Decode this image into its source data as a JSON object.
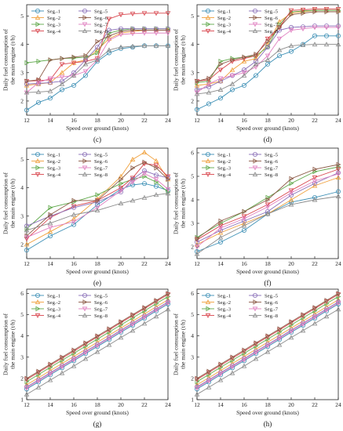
{
  "figure": {
    "colors": {
      "Seg.-1": "#3c8fb5",
      "Seg.-2": "#f0a03c",
      "Seg.-3": "#5fa84a",
      "Seg.-4": "#d8434b",
      "Seg.-5": "#8a6fb8",
      "Seg.-6": "#8c5a46",
      "Seg.-7": "#e07fc0",
      "Seg.-8": "#8a8a8a"
    },
    "markers": {
      "Seg.-1": "circle",
      "Seg.-2": "triangle-up",
      "Seg.-3": "triangle-right",
      "Seg.-4": "triangle-down",
      "Seg.-5": "circle",
      "Seg.-6": "triangle-right",
      "Seg.-7": "triangle-down",
      "Seg.-8": "triangle-up"
    }
  },
  "chart_data": [
    {
      "panel": "(c)",
      "type": "line",
      "xlabel": "Speed over ground (knots)",
      "ylabel": "Daily fuel consumption of the main engine (t/h)",
      "xlim": [
        12,
        24
      ],
      "ylim": [
        1.5,
        5.4
      ],
      "xticks": [
        12,
        14,
        16,
        18,
        20,
        22,
        24
      ],
      "yticks": [
        2,
        3,
        4,
        5
      ],
      "legend_cols": [
        [
          "Seg.-1",
          "Seg.-2",
          "Seg.-3",
          "Seg.-4"
        ],
        [
          "Seg.-5",
          "Seg.-6",
          "Seg.-7",
          "Seg.-8"
        ]
      ],
      "legend": "top-left",
      "grid": false,
      "x": [
        12,
        13,
        14,
        15,
        16,
        17,
        18,
        19,
        20,
        21,
        22,
        23,
        24
      ],
      "series": [
        {
          "name": "Seg.-1",
          "values": [
            1.68,
            1.95,
            2.1,
            2.4,
            2.55,
            2.9,
            3.4,
            3.7,
            3.85,
            3.9,
            3.95,
            3.95,
            3.95
          ]
        },
        {
          "name": "Seg.-2",
          "values": [
            2.55,
            2.6,
            2.65,
            3.0,
            3.35,
            3.45,
            3.8,
            4.2,
            4.4,
            4.45,
            4.5,
            4.5,
            4.5
          ]
        },
        {
          "name": "Seg.-3",
          "values": [
            3.35,
            3.4,
            3.45,
            3.5,
            3.52,
            3.55,
            3.7,
            4.4,
            4.5,
            4.55,
            4.55,
            4.55,
            4.55
          ]
        },
        {
          "name": "Seg.-4",
          "values": [
            2.7,
            2.72,
            2.75,
            3.3,
            3.35,
            3.4,
            3.5,
            4.9,
            5.05,
            5.08,
            5.1,
            5.1,
            5.1
          ]
        },
        {
          "name": "Seg.-5",
          "values": [
            2.6,
            2.62,
            2.65,
            2.7,
            3.0,
            3.45,
            3.9,
            4.5,
            4.55,
            4.55,
            4.55,
            4.55,
            4.55
          ]
        },
        {
          "name": "Seg.-6",
          "values": [
            2.7,
            2.75,
            3.45,
            3.5,
            3.55,
            3.6,
            4.1,
            4.3,
            4.45,
            4.5,
            4.5,
            4.5,
            4.5
          ]
        },
        {
          "name": "Seg.-7",
          "values": [
            2.3,
            2.65,
            2.8,
            2.85,
            2.9,
            3.05,
            3.45,
            4.15,
            4.35,
            4.38,
            4.4,
            4.4,
            4.4
          ]
        },
        {
          "name": "Seg.-8",
          "values": [
            2.3,
            2.32,
            2.35,
            2.6,
            2.9,
            3.3,
            3.45,
            3.8,
            3.9,
            3.93,
            3.95,
            3.95,
            3.95
          ]
        }
      ]
    },
    {
      "panel": "(d)",
      "type": "line",
      "xlabel": "Speed over ground (knots)",
      "ylabel": "Daily fuel consumption of the main engine (t/h)",
      "xlim": [
        12,
        24
      ],
      "ylim": [
        1.5,
        5.4
      ],
      "xticks": [
        12,
        14,
        16,
        18,
        20,
        22,
        24
      ],
      "yticks": [
        2,
        3,
        4,
        5
      ],
      "legend_cols": [
        [
          "Seg.-1",
          "Seg.-2",
          "Seg.-3",
          "Seg.-4"
        ],
        [
          "Seg.-5",
          "Seg.-6",
          "Seg.-7",
          "Seg.-8"
        ]
      ],
      "legend": "top-left",
      "grid": false,
      "x": [
        12,
        13,
        14,
        15,
        16,
        17,
        18,
        19,
        20,
        21,
        22,
        23,
        24
      ],
      "series": [
        {
          "name": "Seg.-1",
          "values": [
            1.7,
            1.9,
            2.1,
            2.4,
            2.55,
            2.9,
            3.3,
            3.6,
            3.75,
            4.0,
            4.3,
            4.3,
            4.3
          ]
        },
        {
          "name": "Seg.-2",
          "values": [
            2.55,
            2.6,
            2.7,
            3.1,
            3.4,
            3.5,
            4.0,
            4.8,
            5.1,
            5.15,
            5.2,
            5.2,
            5.2
          ]
        },
        {
          "name": "Seg.-3",
          "values": [
            2.65,
            2.7,
            3.4,
            3.5,
            3.55,
            3.6,
            3.9,
            4.7,
            5.15,
            5.18,
            5.2,
            5.2,
            5.2
          ]
        },
        {
          "name": "Seg.-4",
          "values": [
            2.7,
            2.75,
            3.1,
            3.4,
            3.5,
            3.6,
            4.2,
            4.6,
            5.2,
            5.22,
            5.25,
            5.25,
            5.25
          ]
        },
        {
          "name": "Seg.-5",
          "values": [
            2.4,
            2.5,
            2.7,
            2.9,
            3.1,
            3.4,
            3.9,
            4.5,
            4.6,
            4.62,
            4.65,
            4.65,
            4.65
          ]
        },
        {
          "name": "Seg.-6",
          "values": [
            2.7,
            2.8,
            3.3,
            3.45,
            3.55,
            3.65,
            4.1,
            4.6,
            5.05,
            5.1,
            5.15,
            5.15,
            5.15
          ]
        },
        {
          "name": "Seg.-7",
          "values": [
            2.3,
            2.6,
            2.8,
            2.9,
            3.0,
            3.2,
            3.6,
            4.2,
            4.5,
            4.55,
            4.6,
            4.6,
            4.6
          ]
        },
        {
          "name": "Seg.-8",
          "values": [
            2.25,
            2.3,
            2.4,
            2.6,
            2.9,
            3.3,
            3.45,
            3.8,
            3.95,
            3.98,
            4.0,
            4.0,
            4.0
          ]
        }
      ]
    },
    {
      "panel": "(e)",
      "type": "line",
      "xlabel": "Speed over ground (knots)",
      "ylabel": "Daily fuel consumption of the main engine (t/h)",
      "xlim": [
        12,
        24
      ],
      "ylim": [
        1.5,
        5.4
      ],
      "xticks": [
        12,
        14,
        16,
        18,
        20,
        22,
        24
      ],
      "yticks": [
        2,
        3,
        4,
        5
      ],
      "legend_cols": [
        [
          "Seg.-1",
          "Seg.-2",
          "Seg.-3",
          "Seg.-4"
        ],
        [
          "Seg.-5",
          "Seg.-6",
          "Seg.-7",
          "Seg.-8"
        ]
      ],
      "legend": "top-left",
      "grid": false,
      "x": [
        12,
        14,
        16,
        18,
        20,
        21,
        22,
        23,
        24
      ],
      "series": [
        {
          "name": "Seg.-1",
          "values": [
            1.8,
            2.3,
            2.7,
            3.4,
            3.95,
            4.1,
            4.15,
            4.05,
            3.9
          ]
        },
        {
          "name": "Seg.-2",
          "values": [
            2.0,
            2.45,
            2.9,
            3.6,
            4.4,
            5.0,
            5.25,
            4.95,
            4.3
          ]
        },
        {
          "name": "Seg.-3",
          "values": [
            2.55,
            3.3,
            3.5,
            3.75,
            4.15,
            4.3,
            4.4,
            4.2,
            3.85
          ]
        },
        {
          "name": "Seg.-4",
          "values": [
            2.2,
            2.95,
            3.35,
            3.55,
            4.0,
            4.35,
            4.85,
            4.8,
            4.4
          ]
        },
        {
          "name": "Seg.-5",
          "values": [
            2.65,
            3.0,
            3.3,
            3.5,
            3.85,
            4.3,
            4.6,
            4.45,
            4.35
          ]
        },
        {
          "name": "Seg.-6",
          "values": [
            2.3,
            3.05,
            3.55,
            3.55,
            4.3,
            4.7,
            4.9,
            4.7,
            4.3
          ]
        },
        {
          "name": "Seg.-7",
          "values": [
            2.25,
            2.6,
            2.8,
            3.3,
            3.9,
            4.2,
            4.5,
            4.3,
            3.95
          ]
        },
        {
          "name": "Seg.-8",
          "values": [
            2.5,
            2.75,
            3.05,
            3.2,
            3.45,
            3.55,
            3.65,
            3.75,
            3.8
          ]
        }
      ]
    },
    {
      "panel": "(f)",
      "type": "line",
      "xlabel": "Speed over ground (knots)",
      "ylabel": "Daily fuel consumption of the main engine (t/h)",
      "xlim": [
        12,
        24
      ],
      "ylim": [
        1.5,
        6.2
      ],
      "xticks": [
        12,
        14,
        16,
        18,
        20,
        22,
        24
      ],
      "yticks": [
        2,
        3,
        4,
        5,
        6
      ],
      "legend_cols": [
        [
          "Seg.-1",
          "Seg.-2",
          "Seg.-3",
          "Seg.-4"
        ],
        [
          "Seg.-5",
          "Seg.-6",
          "Seg.-7",
          "Seg.-8"
        ]
      ],
      "legend": "top-left",
      "grid": false,
      "x": [
        12,
        14,
        16,
        18,
        20,
        22,
        24
      ],
      "series": [
        {
          "name": "Seg.-1",
          "values": [
            1.8,
            2.2,
            2.7,
            3.4,
            3.9,
            4.1,
            4.35
          ]
        },
        {
          "name": "Seg.-2",
          "values": [
            2.1,
            2.6,
            3.0,
            3.4,
            4.0,
            4.6,
            4.95
          ]
        },
        {
          "name": "Seg.-3",
          "values": [
            2.4,
            3.0,
            3.5,
            4.1,
            4.7,
            5.2,
            5.4
          ]
        },
        {
          "name": "Seg.-4",
          "values": [
            2.3,
            2.9,
            3.3,
            3.8,
            4.4,
            4.95,
            5.3
          ]
        },
        {
          "name": "Seg.-5",
          "values": [
            2.2,
            2.7,
            3.1,
            3.5,
            4.2,
            4.7,
            5.15
          ]
        },
        {
          "name": "Seg.-6",
          "values": [
            2.35,
            3.1,
            3.5,
            4.0,
            4.9,
            5.3,
            5.5
          ]
        },
        {
          "name": "Seg.-7",
          "values": [
            2.0,
            2.8,
            3.2,
            3.7,
            4.3,
            4.8,
            5.1
          ]
        },
        {
          "name": "Seg.-8",
          "values": [
            1.7,
            2.4,
            2.9,
            3.4,
            3.8,
            4.0,
            4.15
          ]
        }
      ]
    },
    {
      "panel": "(g)",
      "type": "line",
      "xlabel": "Speed over ground (knots)",
      "ylabel": "Daily fuel consumption of the main engine (t/h)",
      "xlim": [
        12,
        24
      ],
      "ylim": [
        1.0,
        6.2
      ],
      "xticks": [
        12,
        14,
        16,
        18,
        20,
        22,
        24
      ],
      "yticks": [
        1,
        2,
        3,
        4,
        5,
        6
      ],
      "legend_cols": [
        [
          "Seg.-1",
          "Seg.-2",
          "Seg.-3",
          "Seg.-4"
        ],
        [
          "Seg.-5",
          "Seg.-6",
          "Seg.-7",
          "Seg.-8"
        ]
      ],
      "legend": "top-left",
      "grid": false,
      "x": [
        12,
        13,
        14,
        15,
        16,
        17,
        18,
        19,
        20,
        21,
        22,
        23,
        24
      ],
      "series": [
        {
          "name": "Seg.-1",
          "values": [
            1.5,
            1.83,
            2.17,
            2.5,
            2.83,
            3.17,
            3.5,
            3.83,
            4.17,
            4.5,
            4.83,
            5.17,
            5.5
          ]
        },
        {
          "name": "Seg.-2",
          "values": [
            1.7,
            2.03,
            2.37,
            2.7,
            3.03,
            3.37,
            3.7,
            4.03,
            4.37,
            4.7,
            5.03,
            5.37,
            5.7
          ]
        },
        {
          "name": "Seg.-3",
          "values": [
            1.85,
            2.18,
            2.52,
            2.85,
            3.18,
            3.52,
            3.85,
            4.18,
            4.52,
            4.85,
            5.18,
            5.52,
            5.85
          ]
        },
        {
          "name": "Seg.-4",
          "values": [
            1.95,
            2.28,
            2.62,
            2.95,
            3.28,
            3.62,
            3.95,
            4.28,
            4.62,
            4.95,
            5.28,
            5.62,
            5.95
          ]
        },
        {
          "name": "Seg.-5",
          "values": [
            1.6,
            1.93,
            2.27,
            2.6,
            2.93,
            3.27,
            3.6,
            3.93,
            4.27,
            4.6,
            4.93,
            5.27,
            5.6
          ]
        },
        {
          "name": "Seg.-6",
          "values": [
            2.0,
            2.33,
            2.67,
            3.0,
            3.33,
            3.67,
            4.0,
            4.33,
            4.67,
            5.0,
            5.33,
            5.67,
            6.0
          ]
        },
        {
          "name": "Seg.-7",
          "values": [
            1.55,
            1.88,
            2.22,
            2.55,
            2.88,
            3.22,
            3.55,
            3.88,
            4.22,
            4.55,
            4.88,
            5.22,
            5.55
          ]
        },
        {
          "name": "Seg.-8",
          "values": [
            1.25,
            1.58,
            1.92,
            2.25,
            2.58,
            2.92,
            3.25,
            3.58,
            3.92,
            4.25,
            4.58,
            4.92,
            5.25
          ]
        }
      ]
    },
    {
      "panel": "(h)",
      "type": "line",
      "xlabel": "Speed over ground (knots)",
      "ylabel": "Daily fuel consumption of the main engine (t/h)",
      "xlim": [
        12,
        24
      ],
      "ylim": [
        1.0,
        6.2
      ],
      "xticks": [
        12,
        14,
        16,
        18,
        20,
        22,
        24
      ],
      "yticks": [
        1,
        2,
        3,
        4,
        5,
        6
      ],
      "legend_cols": [
        [
          "Seg.-1",
          "Seg.-2",
          "Seg.-3",
          "Seg.-4"
        ],
        [
          "Seg.-5",
          "Seg.-6",
          "Seg.-7",
          "Seg.-8"
        ]
      ],
      "legend": "top-left",
      "grid": false,
      "x": [
        12,
        13,
        14,
        15,
        16,
        17,
        18,
        19,
        20,
        21,
        22,
        23,
        24
      ],
      "series": [
        {
          "name": "Seg.-1",
          "values": [
            1.5,
            1.83,
            2.17,
            2.5,
            2.83,
            3.17,
            3.5,
            3.83,
            4.17,
            4.5,
            4.83,
            5.17,
            5.5
          ]
        },
        {
          "name": "Seg.-2",
          "values": [
            1.7,
            2.03,
            2.37,
            2.7,
            3.03,
            3.37,
            3.7,
            4.03,
            4.37,
            4.7,
            5.03,
            5.37,
            5.7
          ]
        },
        {
          "name": "Seg.-3",
          "values": [
            1.85,
            2.18,
            2.52,
            2.85,
            3.18,
            3.52,
            3.85,
            4.18,
            4.52,
            4.85,
            5.18,
            5.52,
            5.85
          ]
        },
        {
          "name": "Seg.-4",
          "values": [
            1.95,
            2.28,
            2.62,
            2.95,
            3.28,
            3.62,
            3.95,
            4.28,
            4.62,
            4.95,
            5.28,
            5.62,
            5.95
          ]
        },
        {
          "name": "Seg.-5",
          "values": [
            1.6,
            1.93,
            2.27,
            2.6,
            2.93,
            3.27,
            3.6,
            3.93,
            4.27,
            4.6,
            4.93,
            5.27,
            5.6
          ]
        },
        {
          "name": "Seg.-6",
          "values": [
            2.0,
            2.33,
            2.67,
            3.0,
            3.33,
            3.67,
            4.0,
            4.33,
            4.67,
            5.0,
            5.33,
            5.67,
            6.0
          ]
        },
        {
          "name": "Seg.-7",
          "values": [
            1.55,
            1.88,
            2.22,
            2.55,
            2.88,
            3.22,
            3.55,
            3.88,
            4.22,
            4.55,
            4.88,
            5.22,
            5.55
          ]
        },
        {
          "name": "Seg.-8",
          "values": [
            1.25,
            1.58,
            1.92,
            2.25,
            2.58,
            2.92,
            3.25,
            3.58,
            3.92,
            4.25,
            4.58,
            4.92,
            5.25
          ]
        }
      ]
    }
  ]
}
